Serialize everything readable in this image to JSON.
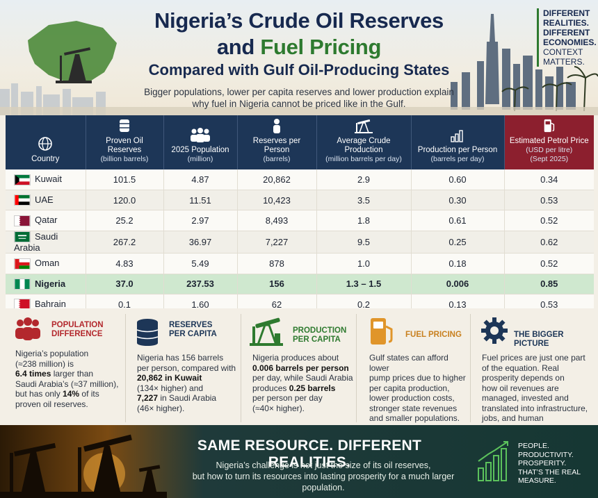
{
  "header": {
    "title_line1": "Nigeria’s Crude Oil Reserves",
    "title_line2_a": "and ",
    "title_line2_b": "Fuel Pricing",
    "title_line3": "Compared with Gulf Oil-Producing States",
    "subtitle": "Bigger populations, lower per capita reserves and lower production explain why fuel in Nigeria cannot be priced like in the Gulf."
  },
  "tagline": {
    "line1": "DIFFERENT",
    "line2": "REALITIES.",
    "line3": "DIFFERENT",
    "line4": "ECONOMIES.",
    "line5": "CONTEXT",
    "line6": "MATTERS."
  },
  "table": {
    "headers": [
      {
        "main": "Country",
        "sub": "",
        "icon": "globe-icon"
      },
      {
        "main": "Proven Oil Reserves",
        "sub": "(billion barrels)",
        "icon": "barrels-icon"
      },
      {
        "main": "2025 Population",
        "sub": "(million)",
        "icon": "people-icon"
      },
      {
        "main": "Reserves per Person",
        "sub": "(barrels)",
        "icon": "person-icon"
      },
      {
        "main": "Average Crude Production",
        "sub": "(million barrels per day)",
        "icon": "pumpjack-icon"
      },
      {
        "main": "Production per Person",
        "sub": "(barrels per day)",
        "icon": "bar-chart-icon"
      },
      {
        "main": "Estimated Petrol Price",
        "sub": "(USD per litre)",
        "sub2": "(Sept 2025)",
        "icon": "fuel-pump-icon"
      }
    ],
    "rows": [
      {
        "country": "Kuwait",
        "reserves": "101.5",
        "population": "4.87",
        "per_person": "20,862",
        "production": "2.9",
        "prod_per_person": "0.60",
        "price": "0.34"
      },
      {
        "country": "UAE",
        "reserves": "120.0",
        "population": "11.51",
        "per_person": "10,423",
        "production": "3.5",
        "prod_per_person": "0.30",
        "price": "0.53"
      },
      {
        "country": "Qatar",
        "reserves": "25.2",
        "population": "2.97",
        "per_person": "8,493",
        "production": "1.8",
        "prod_per_person": "0.61",
        "price": "0.52"
      },
      {
        "country": "Saudi Arabia",
        "reserves": "267.2",
        "population": "36.97",
        "per_person": "7,227",
        "production": "9.5",
        "prod_per_person": "0.25",
        "price": "0.62"
      },
      {
        "country": "Oman",
        "reserves": "4.83",
        "population": "5.49",
        "per_person": "878",
        "production": "1.0",
        "prod_per_person": "0.18",
        "price": "0.52"
      },
      {
        "country": "Nigeria",
        "reserves": "37.0",
        "population": "237.53",
        "per_person": "156",
        "production": "1.3 – 1.5",
        "prod_per_person": "0.006",
        "price": "0.85"
      },
      {
        "country": "Bahrain",
        "reserves": "0.1",
        "population": "1.60",
        "per_person": "62",
        "production": "0.2",
        "prod_per_person": "0.13",
        "price": "0.53"
      }
    ]
  },
  "panels": {
    "population": {
      "title1": "POPULATION",
      "title2": "DIFFERENCE",
      "t1": "Nigeria’s population",
      "t2": "(≈238 million) is",
      "t3b": "6.4 times",
      "t3": " larger than",
      "t4": "Saudi Arabia’s (≈37 million),",
      "t5a": "but has only ",
      "t5b": "14%",
      "t5c": " of its",
      "t6": "proven oil reserves."
    },
    "reserves": {
      "title1": "RESERVES",
      "title2": "PER CAPITA",
      "t1": "Nigeria has 156 barrels",
      "t2": "per person, compared with",
      "t3b": "20,862 in Kuwait",
      "t4": "(134× higher) and",
      "t5b": "7,227",
      "t5": " in Saudi Arabia",
      "t6": "(46× higher)."
    },
    "production": {
      "title1": "PRODUCTION",
      "title2": "PER CAPITA",
      "t1": "Nigeria produces about",
      "t2b": "0.006 barrels per person",
      "t3": "per day, while Saudi Arabia",
      "t4a": "produces ",
      "t4b": "0.25 barrels",
      "t5": "per person per day",
      "t6": "(≈40× higher)."
    },
    "fuel": {
      "title1": "FUEL PRICING",
      "t1": "Gulf states can afford lower",
      "t2": "pump prices due to higher",
      "t3": "per capita production,",
      "t4": "lower production costs,",
      "t5": "stronger state revenues",
      "t6": "and smaller populations."
    },
    "bigger": {
      "title1": "THE BIGGER PICTURE",
      "t1": "Fuel prices are just one part",
      "t2": "of the equation. Real",
      "t3": "prosperity depends on",
      "t4": "how oil revenues are",
      "t5": "managed, invested and",
      "t6": "translated into infrastructure,",
      "t7": "jobs, and human development."
    }
  },
  "footer": {
    "title": "SAME RESOURCE. DIFFERENT REALITIES.",
    "text1": "Nigeria’s challenge is not just the size of its oil reserves,",
    "text2": "but how to turn its resources into lasting prosperity for a much larger population.",
    "r1": "PEOPLE.",
    "r2": "PRODUCTIVITY.",
    "r3": "PROSPERITY.",
    "r4": "THAT’S THE REAL MEASURE."
  },
  "colors": {
    "navy": "#1d3657",
    "green": "#2e7a2f",
    "petrol_header": "#8c1f2e",
    "nigeria_row": "#cfe8cf",
    "red_accent": "#b3282d"
  }
}
